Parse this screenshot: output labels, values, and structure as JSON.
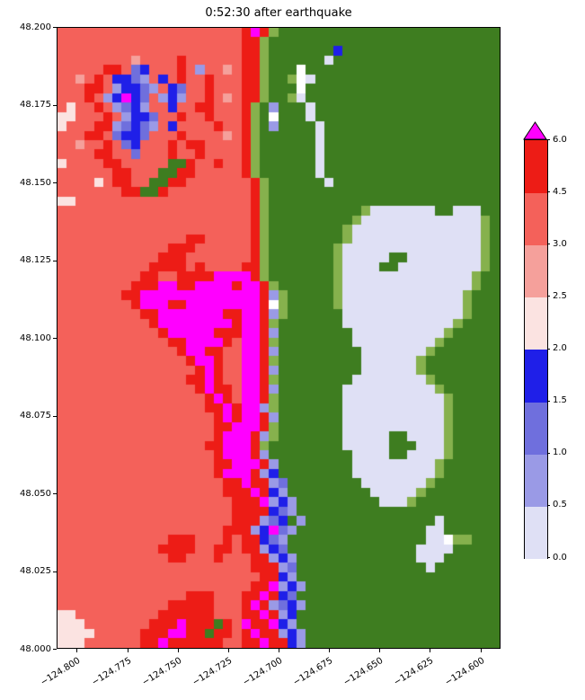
{
  "chart_data": {
    "type": "heatmap",
    "title": "0:52:30 after earthquake",
    "xlabel": "",
    "ylabel": "",
    "x_range": [
      -124.81,
      -124.59
    ],
    "y_range": [
      48.0,
      48.2
    ],
    "grid_on": false,
    "legend_position": "right",
    "x_ticks": [
      {
        "label": "−124.800",
        "value": -124.8
      },
      {
        "label": "−124.775",
        "value": -124.775
      },
      {
        "label": "−124.750",
        "value": -124.75
      },
      {
        "label": "−124.725",
        "value": -124.725
      },
      {
        "label": "−124.700",
        "value": -124.7
      },
      {
        "label": "−124.675",
        "value": -124.675
      },
      {
        "label": "−124.650",
        "value": -124.65
      },
      {
        "label": "−124.625",
        "value": -124.625
      },
      {
        "label": "−124.600",
        "value": -124.6
      }
    ],
    "y_ticks": [
      {
        "label": "48.200",
        "value": 48.2
      },
      {
        "label": "48.175",
        "value": 48.175
      },
      {
        "label": "48.150",
        "value": 48.15
      },
      {
        "label": "48.125",
        "value": 48.125
      },
      {
        "label": "48.100",
        "value": 48.1
      },
      {
        "label": "48.075",
        "value": 48.075
      },
      {
        "label": "48.050",
        "value": 48.05
      },
      {
        "label": "48.025",
        "value": 48.025
      },
      {
        "label": "48.000",
        "value": 48.0
      }
    ],
    "colorbar": {
      "orientation": "vertical",
      "extend": "max",
      "levels": [
        0.0,
        0.5,
        1.0,
        1.5,
        2.0,
        2.5,
        3.0,
        4.5,
        6.0
      ],
      "tick_labels": [
        "0.0",
        "0.5",
        "1.0",
        "1.5",
        "2.0",
        "2.5",
        "3.0",
        "4.5",
        "6.0"
      ],
      "segment_colors_low_to_high": [
        "#dfe0f5",
        "#9a9ae6",
        "#6f6fdd",
        "#1f1fe8",
        "#fbe3e1",
        "#f5a09b",
        "#f4615a",
        "#ed1c16"
      ],
      "over_color": "#ff00ff"
    },
    "field": {
      "description": "Coarse 48x66 approximation of tsunami amplitude field and land; row 0 = north (48.200), col 0 = west (-124.810)",
      "cols": 48,
      "rows": 66,
      "palette": {
        ".": {
          "meaning": "amplitude 3.0-4.5",
          "color": "#f4615a"
        },
        "R": {
          "meaning": "amplitude 4.5-6.0",
          "color": "#ed1c16"
        },
        "m": {
          "meaning": "amplitude > 6.0",
          "color": "#ff00ff"
        },
        "p": {
          "meaning": "amplitude 2.5-3.0",
          "color": "#f5a09b"
        },
        "q": {
          "meaning": "amplitude 2.0-2.5",
          "color": "#fbe3e1"
        },
        "l": {
          "meaning": "amplitude 0.0-0.5",
          "color": "#dfe0f5"
        },
        "b": {
          "meaning": "amplitude 0.5-1.0",
          "color": "#9a9ae6"
        },
        "B": {
          "meaning": "amplitude 1.0-1.5",
          "color": "#6f6fdd"
        },
        "D": {
          "meaning": "amplitude 1.5-2.0",
          "color": "#1f1fe8"
        },
        "g": {
          "meaning": "land high",
          "color": "#3e7d20"
        },
        "G": {
          "meaning": "land low",
          "color": "#86b14d"
        },
        "w": {
          "meaning": "white/no data",
          "color": "#ffffff"
        }
      },
      "cells": [
        "....................RmRGgggggggggggggggggggggggg",
        "....................RRGggggggggggggggggggggggggg",
        "....................RRGgggggggDggggggggggggggggg",
        "........p....R......RRGgggggglgggggggggggggggggg",
        ".....RR.BD...R.b..p.RRGgggwggggggggggggggggggggg",
        "..p.R.DDBb.D.R..R...RRGggGwlgggggggggggggggggggg",
        "...RR.bDDBb.DB..R...RRGgggwggggggggggggggggggggg",
        "...R.bDmDB.bDb..R.p.RRGggGlggggggggggggggggggggg",
        ".q..R.bBDb..D..RR...RGgbggglgggggggggggggggggggg",
        "qq...R.bDDB..R..R...RGgwggglgggggggggggggggggggg",
        "q...RRbBDBb.D....R..RGgbgggglggggggggggggggggggg",
        "...RR.BDDB...R....p.RGgggggglggggggggggggggggggg",
        "..p..R.BD...R.RR....RGgggggglggggggggggggggggggg",
        "....RR..B...R..R....RGgggggglggggggggggggggggggg",
        "q....RR.....ggR..R..RGgggggglggggggggggggggggggg",
        "......RR...ggRR.....RGgggggglggggggggggggggggggg",
        "....q.RR..ggRR.......RGgggggglgggggggggggggggggg",
        ".......RRggR.........RGggggggggggggggggggggggggg",
        "qq...................RGggggggggggggggggggggggggg",
        ".....................RGggggggggggGlllllllgglllgg",
        ".....................RGgggggggggGlllllllllllllGg",
        ".....................RGggggggggGllllllllllllllGg",
        "..............RR.....RGggggggggGllllllllllllllGg",
        "............RRR......RGgggggggGlllllllllllllllGg",
        "...........RRR.......RGgggggggGlllllggllllllllGg",
        "..........RRRR.R....RRGgggggggGllllgglllllllllGg",
        ".........RR..RRRRmmmmRGgggggggGllllllllllllllGgg",
        "........RRRmmRRmmmmRmmRGggggggGllllllllllllllGgg",
        ".......RRmmmmmmmmmmmmmRbGgggggGlllllllllllllGggg",
        "........RmmmRRmmmmmmmmRwGgggggGlllllllllllllGggg",
        ".........RRmmmmmmmRRmmRbGgggggglllllllllllllGggg",
        "..........RmmmmmmmmRmmRGgggggggllllllllllllGgggg",
        "...........RmmmmmRRRmmRbggggggggllllllllllGggggg",
        "............RRmmmmR.mmRGgggggggglllllllllGgggggg",
        ".............RmmRR..mmRbggggggggglllllllGggggggg",
        "..............RmmR..mmRGgggggggggllllllGgggggggg",
        "...............RmR..mmRbgggggggggllllllGgggggggg",
        "..............RRmR..mmRGggggggggllllllllGggggggg",
        "...............RmRR.mmRbgggggggllllllllllGgggggg",
        "................RmR.mmRGggggggglllllllllllGggggg",
        "................RRmRmmbGggggggglllllllllllGggggg",
        ".................RmRmmRbggggggglllllllllllGggggg",
        ".................RRmmmRGggggggglllllllllllGggggg",
        ".................RmmmRbGggggggglllllggllllGggggg",
        "................RRmmmRGgggggggglllllggglllGggggg",
        ".................RmmmRbgggggggggllllggllllGggggg",
        ".................RRmmmRbgggggggglllllllllGgggggg",
        ".................RmmmRbDgggggggglllllllllGgggggg",
        "..................RRmRRbBgggggggglllllllGggggggg",
        "..................RRRmRDbggggggggglllllGgggggggg",
        "...................RRRmbDbggggggggglllGggggggggg",
        "...................RRRRDBbgggggggggggggggggggggg",
        "...................RRRbBDgbgggggggggggggglgggggg",
        "..................RRRbDmBbggggggggggggggllgggggg",
        "............RRR...R.RRDBbgggggggggggggggllLGGggg",
        "...........RRRR..RR.RRbDBggggggggggggggllllggggg",
        "............RR...R...RRbDbggggggggggggglllgggggg",
        ".....................RRRbBgggggggggggggglggggggg",
        "......................RRDbgggggggggggggggggggggg",
        ".....................RRmbDbggggggggggggggggggggg",
        "..............RRR...RRmRDBgggggggggggggggggggggg",
        "............RRRRR...RmRbBDbggggggggggggggggggggg",
        "qq.........RRRRRR...RRmRbDgggggggggggggggggggggg",
        "qqq.......RRRmRRRgR.mRRmDbgggggggggggggggggggggg",
        "qqqq.....RRRmmRRgRR.RmRRbDbggggggggggggggggggggg",
        "qqq......RRmRRRRRR..RRmRRDbggggggggggggggggggggg"
      ]
    }
  }
}
